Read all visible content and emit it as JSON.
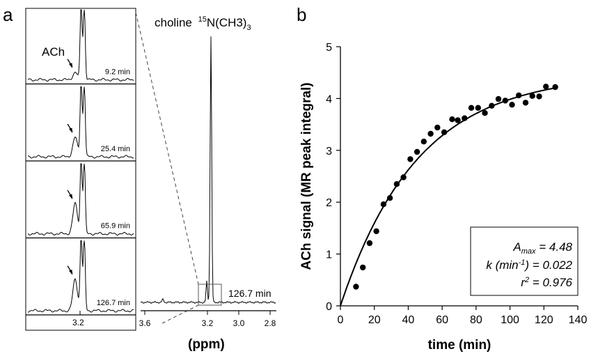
{
  "panel_a": {
    "label": "a",
    "peak_label": "choline",
    "peak_iso": "15",
    "peak_formula": "N(CH3)",
    "peak_sub": "3",
    "ach_label": "ACh",
    "inset_tick": "3.2",
    "main_time": "126.7 min",
    "xlabel": "(ppm)",
    "xticks": [
      "3.6",
      "3.2",
      "3.0",
      "2.8"
    ],
    "insets": [
      {
        "time": "9.2 min",
        "ach_level": 0.11
      },
      {
        "time": "25.4 min",
        "ach_level": 0.29
      },
      {
        "time": "65.9 min",
        "ach_level": 0.45
      },
      {
        "time": "126.7 min",
        "ach_level": 0.47
      }
    ]
  },
  "chart_data": {
    "type": "scatter",
    "panel_label": "b",
    "xlabel": "time (min)",
    "ylabel": "ACh signal (MR peak integral)",
    "xlim": [
      0,
      140
    ],
    "ylim": [
      0,
      5
    ],
    "xticks": [
      0,
      20,
      40,
      60,
      80,
      100,
      120,
      140
    ],
    "yticks": [
      0,
      1,
      2,
      3,
      4,
      5
    ],
    "grid": false,
    "points": [
      [
        9.2,
        0.37
      ],
      [
        13.2,
        0.74
      ],
      [
        17.2,
        1.21
      ],
      [
        21.2,
        1.44
      ],
      [
        25.4,
        1.96
      ],
      [
        29.2,
        2.08
      ],
      [
        33.2,
        2.35
      ],
      [
        37.2,
        2.48
      ],
      [
        41.2,
        2.83
      ],
      [
        45.2,
        2.97
      ],
      [
        49.2,
        3.17
      ],
      [
        53.2,
        3.32
      ],
      [
        57.2,
        3.44
      ],
      [
        61.2,
        3.35
      ],
      [
        65.9,
        3.6
      ],
      [
        69.2,
        3.58
      ],
      [
        73.2,
        3.62
      ],
      [
        77.2,
        3.82
      ],
      [
        81.2,
        3.82
      ],
      [
        85.2,
        3.72
      ],
      [
        89.2,
        3.86
      ],
      [
        93.2,
        3.99
      ],
      [
        97.2,
        3.96
      ],
      [
        101.2,
        3.88
      ],
      [
        105.2,
        4.06
      ],
      [
        109.2,
        3.92
      ],
      [
        113.2,
        4.05
      ],
      [
        117.2,
        4.04
      ],
      [
        121.2,
        4.23
      ],
      [
        126.7,
        4.22
      ]
    ],
    "fit": {
      "model": "A_max*(1-exp(-k*t))",
      "Amax": 4.48,
      "k": 0.022
    },
    "annotation": {
      "amax_label": "A",
      "amax_sub": "max",
      "amax_value": " = 4.48",
      "k_label": "k (min",
      "k_sup": "-1",
      "k_value": ") = 0.022",
      "r2_label": "r",
      "r2_sup": "2",
      "r2_value": " = 0.976"
    }
  }
}
